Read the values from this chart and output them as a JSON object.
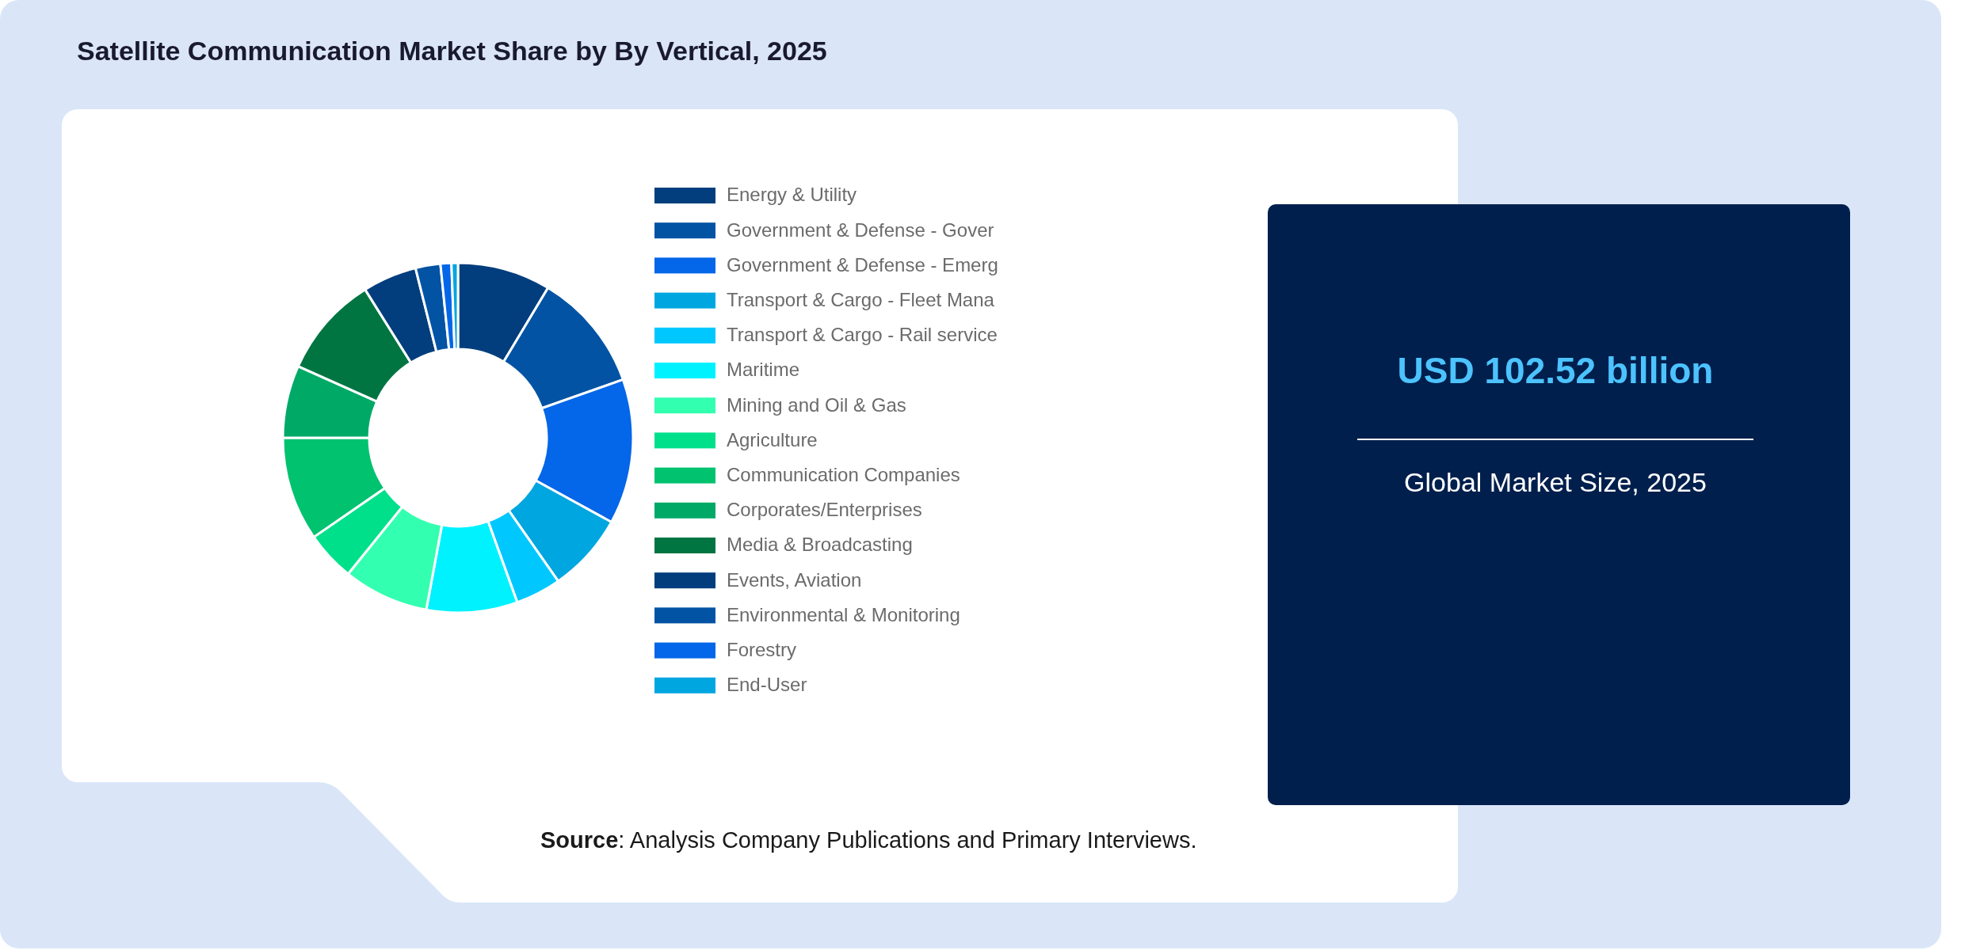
{
  "chart_data": {
    "type": "donut",
    "title": "Satellite Communication Market Share by By Vertical, 2025",
    "categories": [
      "Energy & Utility",
      "Government & Defense - Gover",
      "Government & Defense - Emerg",
      "Transport & Cargo - Fleet Mana",
      "Transport & Cargo - Rail service",
      "Maritime",
      "Mining and Oil & Gas",
      "Agriculture",
      "Communication Companies",
      "Corporates/Enterprises",
      "Media & Broadcasting",
      "Events, Aviation",
      "Environmental & Monitoring",
      "Forestry",
      "End-User"
    ],
    "values": [
      8.6,
      11.0,
      13.4,
      7.3,
      4.2,
      8.4,
      7.9,
      4.6,
      9.6,
      6.7,
      9.4,
      5.0,
      2.3,
      1.0,
      0.6
    ],
    "colors": [
      "#023e7d",
      "#0353a4",
      "#0466e8",
      "#00a6e0",
      "#00c8ff",
      "#00f2ff",
      "#33ffb0",
      "#00e08a",
      "#00c26f",
      "#00aa66",
      "#007542",
      "#023e7d",
      "#0353a4",
      "#0466e8",
      "#00a6e0"
    ],
    "legend": "right",
    "annotations": [
      "USD 102.52 billion",
      "Global Market Size, 2025",
      "Source: Analysis Company Publications and Primary Interviews."
    ]
  }
}
